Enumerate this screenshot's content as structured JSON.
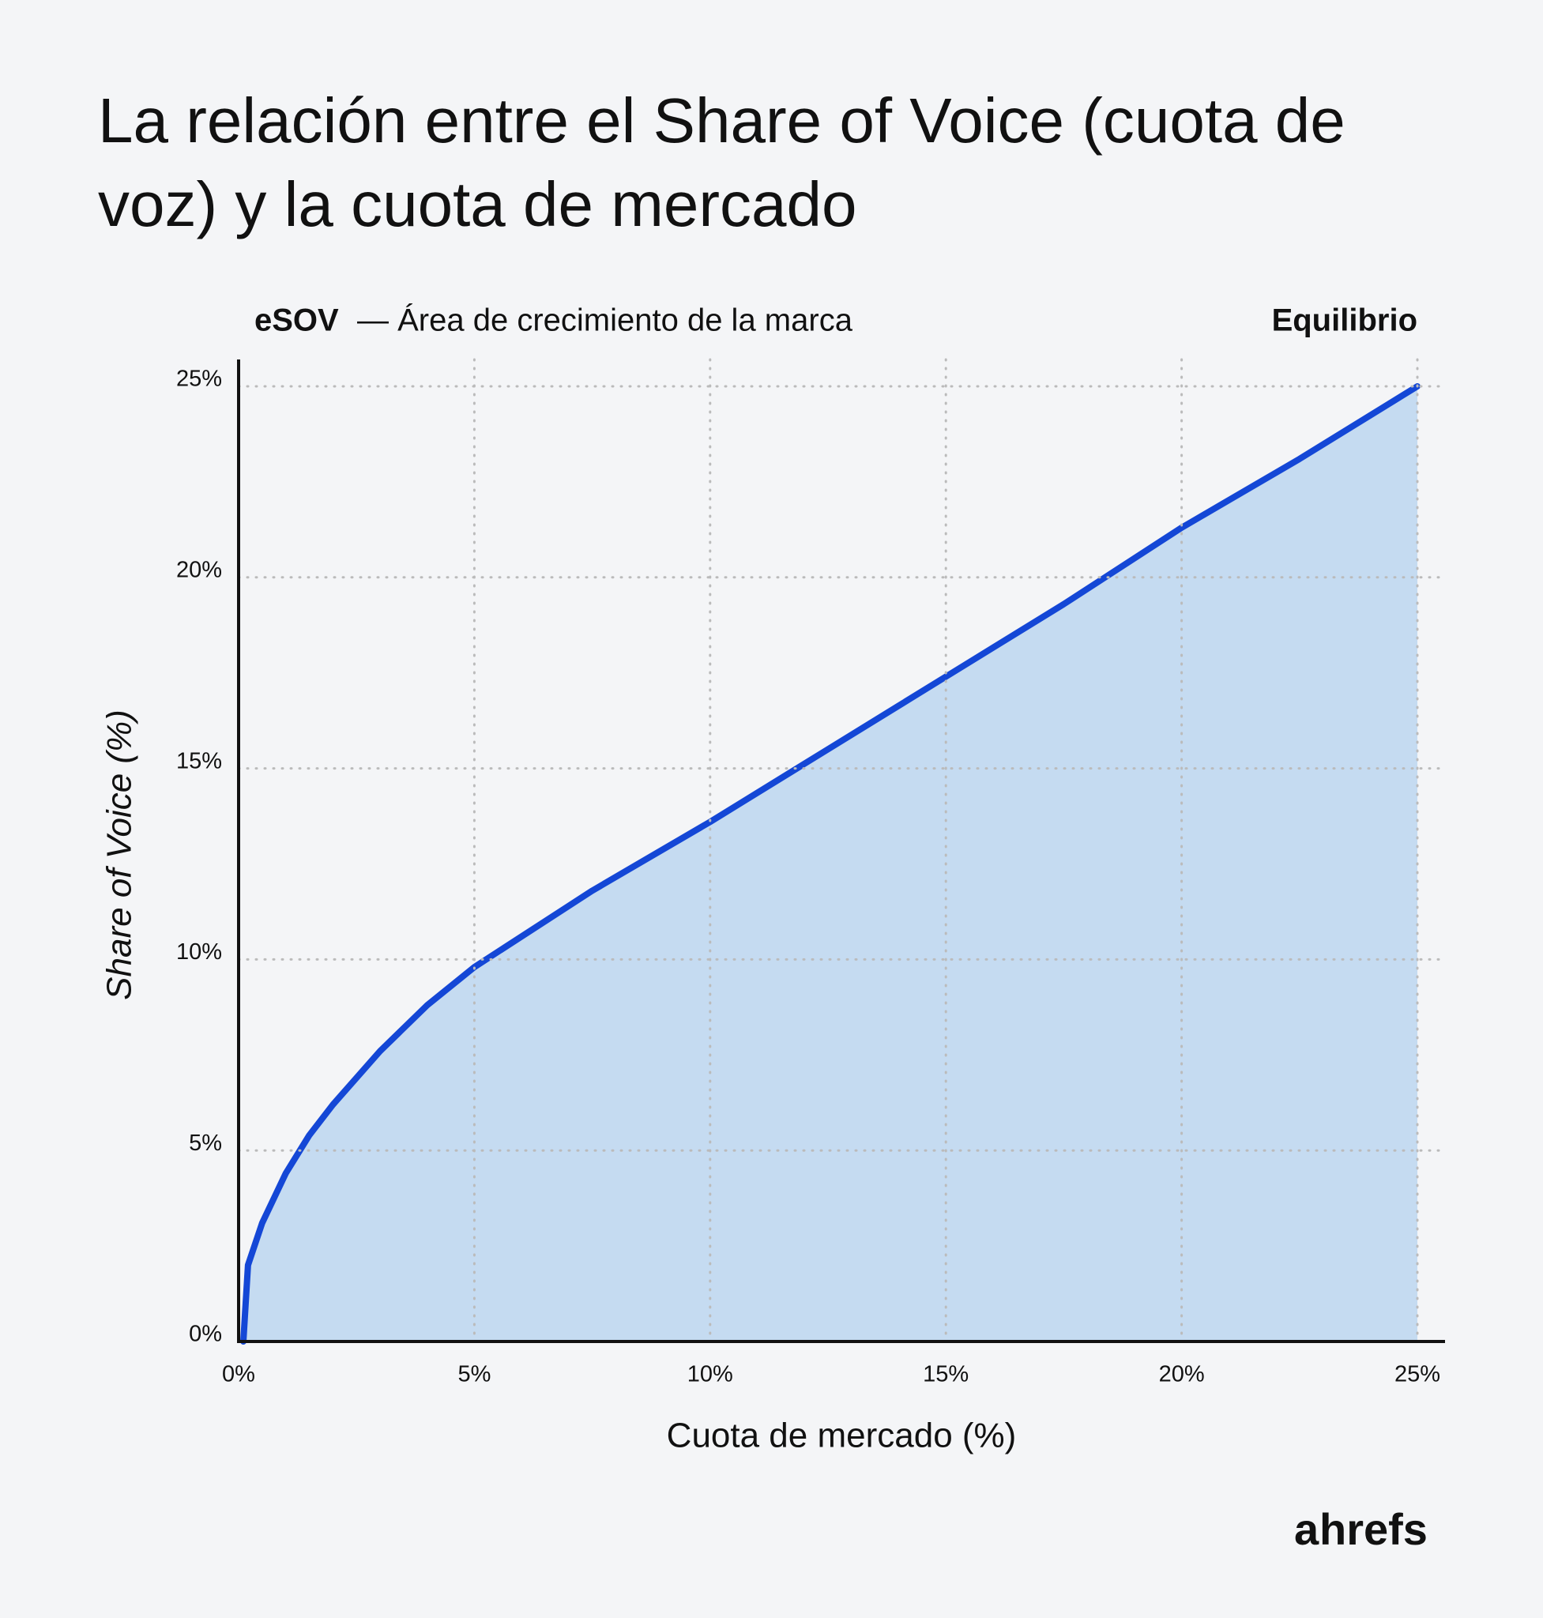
{
  "chart_data": {
    "type": "area",
    "title": "La relación entre el Share of Voice (cuota de voz) y la cuota de mercado",
    "legend_label": "eSOV",
    "legend_text": "— Área de crecimiento de la marca",
    "x_label": "Cuota de mercado (%)",
    "y_label": "Share of Voice (%)",
    "x": [
      0.1,
      0.2,
      0.5,
      1,
      1.5,
      2,
      3,
      4,
      5,
      7.5,
      10,
      12.5,
      15,
      17.5,
      20,
      22.5,
      25
    ],
    "series": [
      {
        "name": "Equilibrio",
        "color": "#1447d6",
        "fill": "#c5dbf1",
        "values": [
          0,
          2,
          3.1,
          4.4,
          5.4,
          6.2,
          7.6,
          8.8,
          9.8,
          11.8,
          13.6,
          15.5,
          17.4,
          19.3,
          21.3,
          23.1,
          25
        ]
      }
    ],
    "xlim": [
      0,
      25
    ],
    "ylim": [
      0,
      25
    ],
    "xticks": [
      {
        "value": 0,
        "label": "0%"
      },
      {
        "value": 5,
        "label": "5%"
      },
      {
        "value": 10,
        "label": "10%"
      },
      {
        "value": 15,
        "label": "15%"
      },
      {
        "value": 20,
        "label": "20%"
      },
      {
        "value": 25,
        "label": "25%"
      }
    ],
    "yticks": [
      {
        "value": 0,
        "label": "0%"
      },
      {
        "value": 5,
        "label": "5%"
      },
      {
        "value": 10,
        "label": "10%"
      },
      {
        "value": 15,
        "label": "15%"
      },
      {
        "value": 20,
        "label": "20%"
      },
      {
        "value": 25,
        "label": "25%"
      }
    ],
    "grid": true,
    "logo": [
      "a",
      "hrefs"
    ]
  }
}
